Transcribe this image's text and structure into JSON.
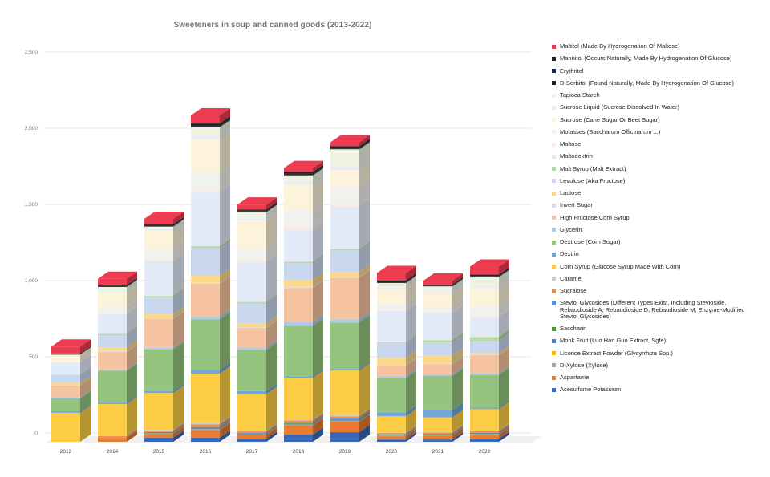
{
  "chart_data": {
    "type": "bar",
    "stacked": true,
    "is3d": true,
    "title": "Sweeteners in soup and canned goods (2013-2022)",
    "xlabel": "",
    "ylabel": "",
    "ylim": [
      0,
      2500
    ],
    "grid": true,
    "legend_position": "right",
    "yticks": [
      {
        "label": "0",
        "value": 0
      },
      {
        "label": "500",
        "value": 500
      },
      {
        "label": "1,000",
        "value": 1000
      },
      {
        "label": "1,500",
        "value": 1500
      },
      {
        "label": "2,000",
        "value": 2000
      },
      {
        "label": "2,500",
        "value": 2500
      }
    ],
    "categories": [
      "2013",
      "2014",
      "2015",
      "2016",
      "2017",
      "2018",
      "2019",
      "2020",
      "2021",
      "2022"
    ],
    "series_order_note": "listed top-of-stack first, matching legend order",
    "series": [
      {
        "name": "Maltitol (Made By Hydrogenation Of Maltose)",
        "color": "#ed3b4f",
        "values": [
          45,
          42,
          37,
          53,
          32,
          26,
          26,
          50,
          26,
          53
        ]
      },
      {
        "name": "Mannitol (Occurs Naturally, Made By Hydrogenation Of Glucose)",
        "color": "#222222",
        "values": [
          4,
          6,
          8,
          10,
          8,
          10,
          10,
          8,
          6,
          8
        ]
      },
      {
        "name": "Erythritol",
        "color": "#15283f",
        "values": [
          2,
          3,
          3,
          7,
          5,
          6,
          5,
          4,
          3,
          4
        ]
      },
      {
        "name": "D-Sorbitol (Found Naturally, Made By Hydrogenation Of Glucose)",
        "color": "#2b1d10",
        "values": [
          2,
          3,
          3,
          7,
          5,
          6,
          5,
          4,
          3,
          4
        ]
      },
      {
        "name": "Tapioca Starch",
        "color": "#eef3e4",
        "values": [
          5,
          25,
          15,
          55,
          42,
          42,
          115,
          30,
          37,
          60
        ]
      },
      {
        "name": "Sucrose Liquid (Sucrose Dissolved In Water)",
        "color": "#e4edf9",
        "values": [
          5,
          8,
          10,
          20,
          12,
          15,
          20,
          10,
          8,
          12
        ]
      },
      {
        "name": "Sucrose (Cane Sugar Or Beet Sugar)",
        "color": "#fdf3da",
        "values": [
          42,
          95,
          120,
          220,
          185,
          170,
          110,
          95,
          90,
          120
        ]
      },
      {
        "name": "Molasses (Saccharum Officinarum L.)",
        "color": "#f1f1ee",
        "values": [
          0,
          42,
          70,
          120,
          80,
          110,
          115,
          40,
          30,
          63
        ]
      },
      {
        "name": "Maltose",
        "color": "#fcebe2",
        "values": [
          0,
          8,
          10,
          15,
          10,
          20,
          15,
          8,
          8,
          8
        ]
      },
      {
        "name": "Maltodextrin",
        "color": "#e2eaf7",
        "values": [
          80,
          130,
          230,
          350,
          260,
          210,
          280,
          205,
          180,
          130
        ]
      },
      {
        "name": "Malt Syrup (Malt Extract)",
        "color": "#b9d9a6",
        "values": [
          0,
          8,
          10,
          15,
          10,
          10,
          10,
          8,
          15,
          25
        ]
      },
      {
        "name": "Levulose (Aka Fructose)",
        "color": "#c9d7ef",
        "values": [
          55,
          80,
          110,
          180,
          130,
          110,
          140,
          95,
          85,
          80
        ]
      },
      {
        "name": "Lactose",
        "color": "#fbd98b",
        "values": [
          15,
          26,
          26,
          47,
          26,
          47,
          32,
          47,
          53,
          10
        ]
      },
      {
        "name": "Invert Sugar",
        "color": "#dbdbdb",
        "values": [
          0,
          4,
          4,
          5,
          4,
          5,
          5,
          4,
          4,
          4
        ]
      },
      {
        "name": "High Fructose Corn Syrup",
        "color": "#f6c4a0",
        "values": [
          80,
          115,
          190,
          215,
          130,
          225,
          275,
          68,
          68,
          120
        ]
      },
      {
        "name": "Glycerin",
        "color": "#afcbea",
        "values": [
          5,
          8,
          10,
          20,
          15,
          25,
          20,
          15,
          10,
          10
        ]
      },
      {
        "name": "Dextrose (Corn Sugar)",
        "color": "#94c47d",
        "values": [
          85,
          210,
          275,
          330,
          270,
          330,
          305,
          225,
          225,
          215
        ]
      },
      {
        "name": "Dextrin",
        "color": "#70a8dc",
        "values": [
          10,
          10,
          12,
          26,
          20,
          10,
          10,
          25,
          47,
          10
        ]
      },
      {
        "name": "Corn Syrup (Glucose Syrup Made With Corn)",
        "color": "#fccd44",
        "values": [
          190,
          205,
          242,
          325,
          240,
          275,
          295,
          105,
          95,
          140
        ]
      },
      {
        "name": "Caramel",
        "color": "#c9c9c9",
        "values": [
          0,
          4,
          4,
          8,
          5,
          6,
          6,
          5,
          4,
          5
        ]
      },
      {
        "name": "Sucralose",
        "color": "#ee8d4f",
        "values": [
          0,
          8,
          10,
          18,
          10,
          14,
          15,
          8,
          8,
          10
        ]
      },
      {
        "name": "Steviol Glycosides (Different Types Exist, Including Stevioside, Rebaudioside A, Rebaudioside D, Rebaudioside M, Enzyme-Modified Steviol Glycosides)",
        "color": "#5b8fd2",
        "values": [
          0,
          0,
          4,
          4,
          4,
          5,
          6,
          4,
          4,
          4
        ]
      },
      {
        "name": "Saccharin",
        "color": "#4c9634",
        "values": [
          0,
          0,
          4,
          4,
          4,
          4,
          5,
          4,
          4,
          4
        ]
      },
      {
        "name": "Monk Fruit (Luo Han Guo Extract, Sgfe)",
        "color": "#4a87c9",
        "values": [
          0,
          0,
          0,
          4,
          0,
          4,
          5,
          0,
          0,
          0
        ]
      },
      {
        "name": "Licorice Extract Powder (Glycyrrhiza Spp.)",
        "color": "#f3b800",
        "values": [
          0,
          0,
          0,
          0,
          0,
          0,
          0,
          0,
          0,
          0
        ]
      },
      {
        "name": "D-Xylose (Xylose)",
        "color": "#a5a5a5",
        "values": [
          0,
          4,
          4,
          8,
          4,
          5,
          5,
          5,
          4,
          5
        ]
      },
      {
        "name": "Aspartame",
        "color": "#e97c30",
        "values": [
          0,
          26,
          26,
          50,
          26,
          60,
          68,
          21,
          26,
          26
        ]
      },
      {
        "name": "Acesulfame Potassium",
        "color": "#3a68b8",
        "values": [
          0,
          0,
          26,
          26,
          20,
          47,
          63,
          15,
          15,
          20
        ]
      }
    ],
    "colors": {
      "grid": "#e6e6e6",
      "floor": "#f0f0f0",
      "axis_text": "#757575",
      "category_text": "#444444",
      "title_text": "#757575"
    }
  }
}
